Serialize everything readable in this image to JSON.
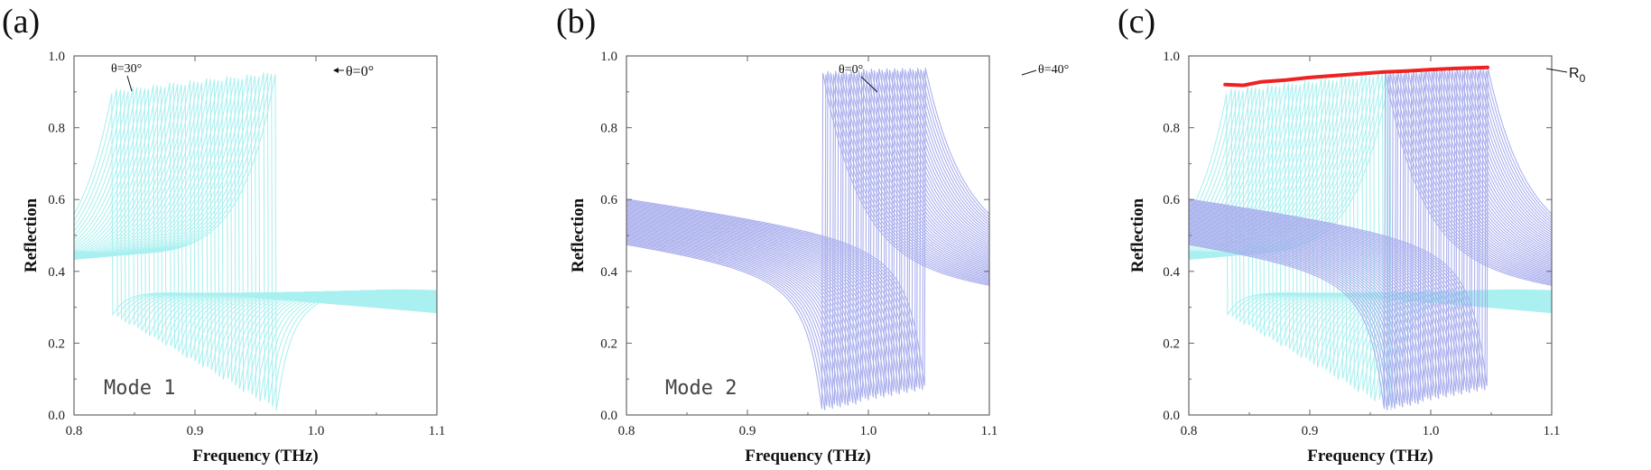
{
  "colors": {
    "mode1": "#a9efef",
    "mode2": "#a6acec",
    "envelope": "#ee2222",
    "axis": "#666666"
  },
  "chart_data": [
    {
      "type": "line",
      "panel": "(a)",
      "xlabel": "Frequency (THz)",
      "ylabel": "Reflection",
      "xlim": [
        0.8,
        1.1
      ],
      "ylim": [
        0.0,
        1.0
      ],
      "xticks": [
        "0.8",
        "0.9",
        "1.0",
        "1.1"
      ],
      "yticks": [
        "0.0",
        "0.2",
        "0.4",
        "0.6",
        "0.8",
        "1.0"
      ],
      "grid": false,
      "mode_label": "Mode 1",
      "family": {
        "mode": 1,
        "n_curves": 41,
        "resonance_start": 0.967,
        "resonance_end": 0.832,
        "peak_start": 0.96,
        "peak_end": 0.91,
        "dip_start": 0.01,
        "dip_end": 0.28,
        "baseline_start": 0.425,
        "baseline_end": 0.345
      },
      "annotations": [
        {
          "text": "θ=30°",
          "x": 0.832,
          "y": 0.93
        },
        {
          "text": "θ=0°",
          "x": 0.967,
          "y": 0.96
        }
      ]
    },
    {
      "type": "line",
      "panel": "(b)",
      "xlabel": "Frequency (THz)",
      "ylabel": "Reflection",
      "xlim": [
        0.8,
        1.1
      ],
      "ylim": [
        0.0,
        1.0
      ],
      "xticks": [
        "0.8",
        "0.9",
        "1.0",
        "1.1"
      ],
      "yticks": [
        "0.0",
        "0.2",
        "0.4",
        "0.6",
        "0.8",
        "1.0"
      ],
      "grid": false,
      "mode_label": "Mode 2",
      "family": {
        "mode": 2,
        "n_curves": 41,
        "resonance_start": 0.962,
        "resonance_end": 1.047,
        "peak_start": 0.96,
        "peak_end": 0.97,
        "dip_start": 0.01,
        "dip_end": 0.07,
        "baseline_start": 0.475,
        "baseline_end": 0.595
      },
      "annotations": [
        {
          "text": "θ=0°",
          "x": 0.962,
          "y": 0.96
        },
        {
          "text": "θ=40°",
          "x": 1.047,
          "y": 0.97
        }
      ]
    },
    {
      "type": "line",
      "panel": "(c)",
      "xlabel": "Frequency (THz)",
      "ylabel": "Reflection",
      "xlim": [
        0.8,
        1.1
      ],
      "ylim": [
        0.0,
        1.0
      ],
      "xticks": [
        "0.8",
        "0.9",
        "1.0",
        "1.1"
      ],
      "yticks": [
        "0.0",
        "0.2",
        "0.4",
        "0.6",
        "0.8",
        "1.0"
      ],
      "grid": false,
      "overlay": [
        "mode 1 family",
        "mode 2 family"
      ],
      "series": [
        {
          "name": "R0",
          "x": [
            0.83,
            0.845,
            0.86,
            0.88,
            0.9,
            0.92,
            0.94,
            0.96,
            0.98,
            1.0,
            1.02,
            1.047
          ],
          "y": [
            0.92,
            0.918,
            0.928,
            0.933,
            0.94,
            0.945,
            0.95,
            0.955,
            0.958,
            0.962,
            0.965,
            0.968
          ]
        }
      ],
      "annotations": [
        {
          "text": "R",
          "sub": "0",
          "x": 1.05,
          "y": 0.965
        }
      ]
    }
  ]
}
